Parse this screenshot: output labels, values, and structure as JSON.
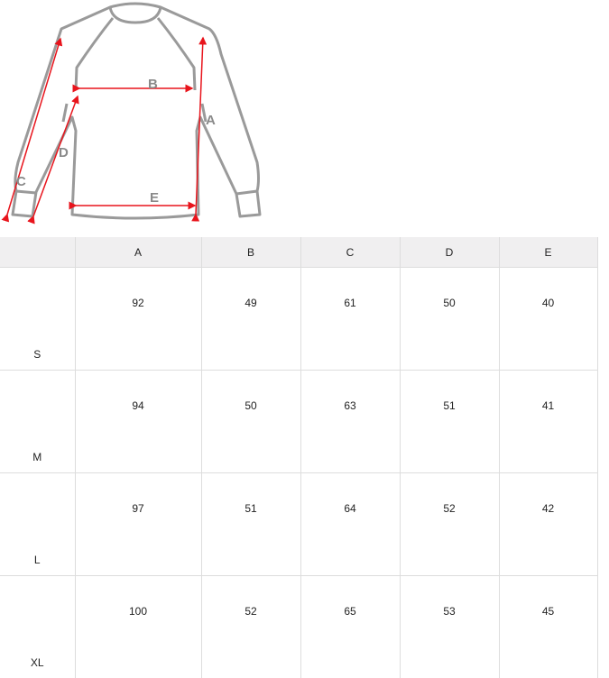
{
  "diagram": {
    "labels": [
      "A",
      "B",
      "C",
      "D",
      "E"
    ],
    "arrow_color": "#e8141c",
    "outline_color": "#9a9a9a"
  },
  "table": {
    "headers": [
      "",
      "A",
      "B",
      "C",
      "D",
      "E"
    ],
    "rows": [
      {
        "size": "S",
        "values": [
          "92",
          "49",
          "61",
          "50",
          "40"
        ]
      },
      {
        "size": "M",
        "values": [
          "94",
          "50",
          "63",
          "51",
          "41"
        ]
      },
      {
        "size": "L",
        "values": [
          "97",
          "51",
          "64",
          "52",
          "42"
        ]
      },
      {
        "size": "XL",
        "values": [
          "100",
          "52",
          "65",
          "53",
          "45"
        ]
      }
    ]
  }
}
